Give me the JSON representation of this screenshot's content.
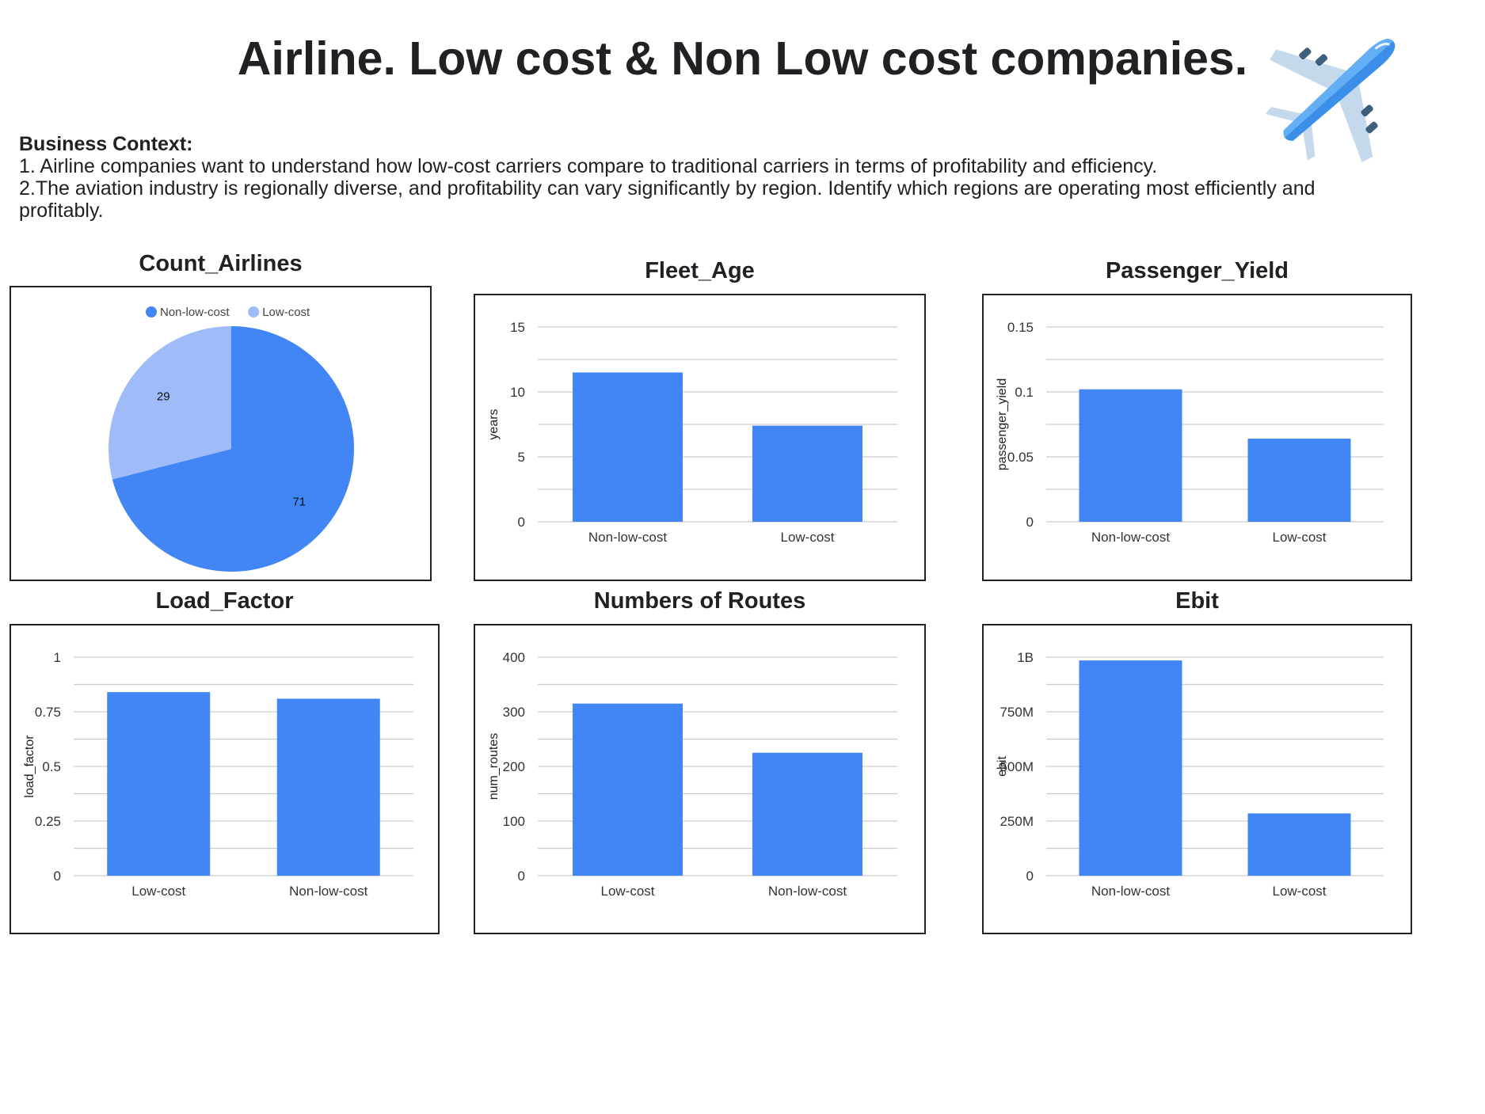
{
  "page": {
    "title": "Airline. Low cost & Non Low cost companies.",
    "context_title": "Business Context:",
    "context_lines": [
      "1. Airline companies want to understand how low-cost carriers compare to traditional carriers in terms of profitability and efficiency.",
      "2.The aviation industry is regionally diverse, and profitability can vary significantly by region. Identify which regions are operating most efficiently and profitably."
    ]
  },
  "colors": {
    "primary": "#4285F4",
    "light": "#9FBCF8",
    "grid": "#CCCCCC",
    "text": "#202124"
  },
  "icon": "airplane-icon",
  "chart_data": [
    {
      "id": "count_airlines",
      "type": "pie",
      "title": "Count_Airlines",
      "labels": [
        "Non-low-cost",
        "Low-cost"
      ],
      "values": [
        71,
        29
      ],
      "data_labels": [
        "71",
        "29"
      ],
      "legend": "top"
    },
    {
      "id": "fleet_age",
      "type": "bar",
      "title": "Fleet_Age",
      "categories": [
        "Non-low-cost",
        "Low-cost"
      ],
      "values": [
        11.5,
        7.4
      ],
      "xlabel": "",
      "ylabel": "years",
      "ylim": [
        0,
        15
      ],
      "yticks": [
        0,
        5,
        10,
        15
      ],
      "ytick_labels": [
        "0",
        "5",
        "10",
        "15"
      ],
      "grid": true
    },
    {
      "id": "passenger_yield",
      "type": "bar",
      "title": "Passenger_Yield",
      "categories": [
        "Non-low-cost",
        "Low-cost"
      ],
      "values": [
        0.102,
        0.064
      ],
      "xlabel": "",
      "ylabel": "passenger_yield",
      "ylim": [
        0,
        0.15
      ],
      "yticks": [
        0,
        0.05,
        0.1,
        0.15
      ],
      "ytick_labels": [
        "0",
        "0.05",
        "0.1",
        "0.15"
      ],
      "grid": true
    },
    {
      "id": "load_factor",
      "type": "bar",
      "title": "Load_Factor",
      "categories": [
        "Low-cost",
        "Non-low-cost"
      ],
      "values": [
        0.84,
        0.81
      ],
      "xlabel": "",
      "ylabel": "load_factor",
      "ylim": [
        0,
        1
      ],
      "yticks": [
        0,
        0.25,
        0.5,
        0.75,
        1
      ],
      "ytick_labels": [
        "0",
        "0.25",
        "0.5",
        "0.75",
        "1"
      ],
      "grid": true
    },
    {
      "id": "num_routes",
      "type": "bar",
      "title": "Numbers of Routes",
      "categories": [
        "Low-cost",
        "Non-low-cost"
      ],
      "values": [
        315,
        225
      ],
      "xlabel": "",
      "ylabel": "num_routes",
      "ylim": [
        0,
        400
      ],
      "yticks": [
        0,
        100,
        200,
        300,
        400
      ],
      "ytick_labels": [
        "0",
        "100",
        "200",
        "300",
        "400"
      ],
      "grid": true
    },
    {
      "id": "ebit",
      "type": "bar",
      "title": "Ebit",
      "categories": [
        "Non-low-cost",
        "Low-cost"
      ],
      "values": [
        985000000,
        285000000
      ],
      "xlabel": "",
      "ylabel": "ebit",
      "ylim": [
        0,
        1000000000
      ],
      "yticks": [
        0,
        250000000,
        500000000,
        750000000,
        1000000000
      ],
      "ytick_labels": [
        "0",
        "250M",
        "500M",
        "750M",
        "1B"
      ],
      "grid": true
    }
  ]
}
